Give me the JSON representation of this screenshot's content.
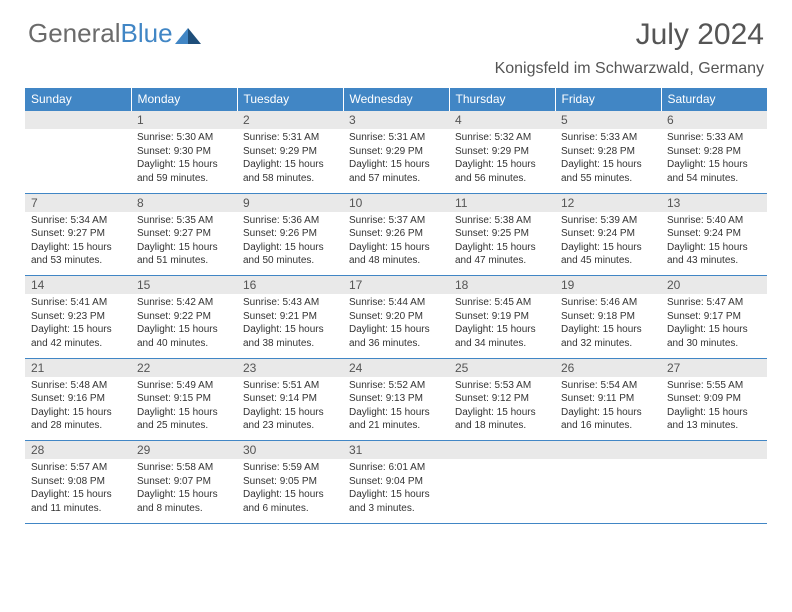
{
  "logo": {
    "part1": "General",
    "part2": "Blue"
  },
  "title": "July 2024",
  "location": "Konigsfeld im Schwarzwald, Germany",
  "colors": {
    "header_bg": "#4186c5",
    "header_text": "#ffffff",
    "daynum_bg": "#e9e9e9",
    "border": "#4186c5",
    "logo_gray": "#6b6b6b",
    "logo_blue": "#4186c5"
  },
  "columns": [
    "Sunday",
    "Monday",
    "Tuesday",
    "Wednesday",
    "Thursday",
    "Friday",
    "Saturday"
  ],
  "weeks": [
    {
      "days": [
        null,
        {
          "n": "1",
          "sunrise": "Sunrise: 5:30 AM",
          "sunset": "Sunset: 9:30 PM",
          "day1": "Daylight: 15 hours",
          "day2": "and 59 minutes."
        },
        {
          "n": "2",
          "sunrise": "Sunrise: 5:31 AM",
          "sunset": "Sunset: 9:29 PM",
          "day1": "Daylight: 15 hours",
          "day2": "and 58 minutes."
        },
        {
          "n": "3",
          "sunrise": "Sunrise: 5:31 AM",
          "sunset": "Sunset: 9:29 PM",
          "day1": "Daylight: 15 hours",
          "day2": "and 57 minutes."
        },
        {
          "n": "4",
          "sunrise": "Sunrise: 5:32 AM",
          "sunset": "Sunset: 9:29 PM",
          "day1": "Daylight: 15 hours",
          "day2": "and 56 minutes."
        },
        {
          "n": "5",
          "sunrise": "Sunrise: 5:33 AM",
          "sunset": "Sunset: 9:28 PM",
          "day1": "Daylight: 15 hours",
          "day2": "and 55 minutes."
        },
        {
          "n": "6",
          "sunrise": "Sunrise: 5:33 AM",
          "sunset": "Sunset: 9:28 PM",
          "day1": "Daylight: 15 hours",
          "day2": "and 54 minutes."
        }
      ]
    },
    {
      "days": [
        {
          "n": "7",
          "sunrise": "Sunrise: 5:34 AM",
          "sunset": "Sunset: 9:27 PM",
          "day1": "Daylight: 15 hours",
          "day2": "and 53 minutes."
        },
        {
          "n": "8",
          "sunrise": "Sunrise: 5:35 AM",
          "sunset": "Sunset: 9:27 PM",
          "day1": "Daylight: 15 hours",
          "day2": "and 51 minutes."
        },
        {
          "n": "9",
          "sunrise": "Sunrise: 5:36 AM",
          "sunset": "Sunset: 9:26 PM",
          "day1": "Daylight: 15 hours",
          "day2": "and 50 minutes."
        },
        {
          "n": "10",
          "sunrise": "Sunrise: 5:37 AM",
          "sunset": "Sunset: 9:26 PM",
          "day1": "Daylight: 15 hours",
          "day2": "and 48 minutes."
        },
        {
          "n": "11",
          "sunrise": "Sunrise: 5:38 AM",
          "sunset": "Sunset: 9:25 PM",
          "day1": "Daylight: 15 hours",
          "day2": "and 47 minutes."
        },
        {
          "n": "12",
          "sunrise": "Sunrise: 5:39 AM",
          "sunset": "Sunset: 9:24 PM",
          "day1": "Daylight: 15 hours",
          "day2": "and 45 minutes."
        },
        {
          "n": "13",
          "sunrise": "Sunrise: 5:40 AM",
          "sunset": "Sunset: 9:24 PM",
          "day1": "Daylight: 15 hours",
          "day2": "and 43 minutes."
        }
      ]
    },
    {
      "days": [
        {
          "n": "14",
          "sunrise": "Sunrise: 5:41 AM",
          "sunset": "Sunset: 9:23 PM",
          "day1": "Daylight: 15 hours",
          "day2": "and 42 minutes."
        },
        {
          "n": "15",
          "sunrise": "Sunrise: 5:42 AM",
          "sunset": "Sunset: 9:22 PM",
          "day1": "Daylight: 15 hours",
          "day2": "and 40 minutes."
        },
        {
          "n": "16",
          "sunrise": "Sunrise: 5:43 AM",
          "sunset": "Sunset: 9:21 PM",
          "day1": "Daylight: 15 hours",
          "day2": "and 38 minutes."
        },
        {
          "n": "17",
          "sunrise": "Sunrise: 5:44 AM",
          "sunset": "Sunset: 9:20 PM",
          "day1": "Daylight: 15 hours",
          "day2": "and 36 minutes."
        },
        {
          "n": "18",
          "sunrise": "Sunrise: 5:45 AM",
          "sunset": "Sunset: 9:19 PM",
          "day1": "Daylight: 15 hours",
          "day2": "and 34 minutes."
        },
        {
          "n": "19",
          "sunrise": "Sunrise: 5:46 AM",
          "sunset": "Sunset: 9:18 PM",
          "day1": "Daylight: 15 hours",
          "day2": "and 32 minutes."
        },
        {
          "n": "20",
          "sunrise": "Sunrise: 5:47 AM",
          "sunset": "Sunset: 9:17 PM",
          "day1": "Daylight: 15 hours",
          "day2": "and 30 minutes."
        }
      ]
    },
    {
      "days": [
        {
          "n": "21",
          "sunrise": "Sunrise: 5:48 AM",
          "sunset": "Sunset: 9:16 PM",
          "day1": "Daylight: 15 hours",
          "day2": "and 28 minutes."
        },
        {
          "n": "22",
          "sunrise": "Sunrise: 5:49 AM",
          "sunset": "Sunset: 9:15 PM",
          "day1": "Daylight: 15 hours",
          "day2": "and 25 minutes."
        },
        {
          "n": "23",
          "sunrise": "Sunrise: 5:51 AM",
          "sunset": "Sunset: 9:14 PM",
          "day1": "Daylight: 15 hours",
          "day2": "and 23 minutes."
        },
        {
          "n": "24",
          "sunrise": "Sunrise: 5:52 AM",
          "sunset": "Sunset: 9:13 PM",
          "day1": "Daylight: 15 hours",
          "day2": "and 21 minutes."
        },
        {
          "n": "25",
          "sunrise": "Sunrise: 5:53 AM",
          "sunset": "Sunset: 9:12 PM",
          "day1": "Daylight: 15 hours",
          "day2": "and 18 minutes."
        },
        {
          "n": "26",
          "sunrise": "Sunrise: 5:54 AM",
          "sunset": "Sunset: 9:11 PM",
          "day1": "Daylight: 15 hours",
          "day2": "and 16 minutes."
        },
        {
          "n": "27",
          "sunrise": "Sunrise: 5:55 AM",
          "sunset": "Sunset: 9:09 PM",
          "day1": "Daylight: 15 hours",
          "day2": "and 13 minutes."
        }
      ]
    },
    {
      "days": [
        {
          "n": "28",
          "sunrise": "Sunrise: 5:57 AM",
          "sunset": "Sunset: 9:08 PM",
          "day1": "Daylight: 15 hours",
          "day2": "and 11 minutes."
        },
        {
          "n": "29",
          "sunrise": "Sunrise: 5:58 AM",
          "sunset": "Sunset: 9:07 PM",
          "day1": "Daylight: 15 hours",
          "day2": "and 8 minutes."
        },
        {
          "n": "30",
          "sunrise": "Sunrise: 5:59 AM",
          "sunset": "Sunset: 9:05 PM",
          "day1": "Daylight: 15 hours",
          "day2": "and 6 minutes."
        },
        {
          "n": "31",
          "sunrise": "Sunrise: 6:01 AM",
          "sunset": "Sunset: 9:04 PM",
          "day1": "Daylight: 15 hours",
          "day2": "and 3 minutes."
        },
        null,
        null,
        null
      ]
    }
  ]
}
